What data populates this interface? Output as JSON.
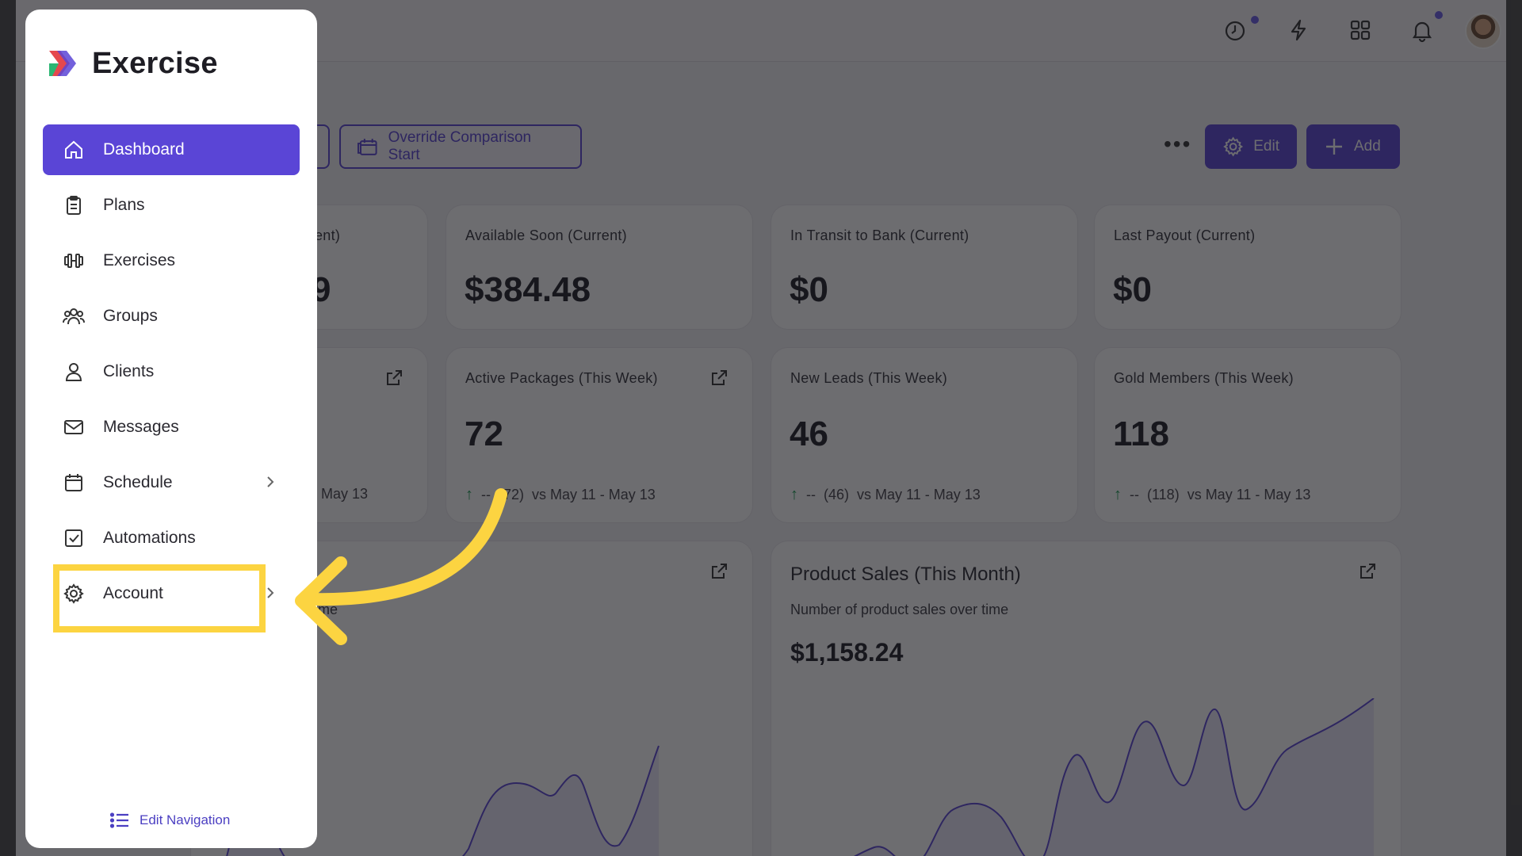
{
  "app": {
    "name": "Exercise"
  },
  "sidebar": {
    "items": [
      {
        "label": "Dashboard"
      },
      {
        "label": "Plans"
      },
      {
        "label": "Exercises"
      },
      {
        "label": "Groups"
      },
      {
        "label": "Clients"
      },
      {
        "label": "Messages"
      },
      {
        "label": "Schedule"
      },
      {
        "label": "Automations"
      },
      {
        "label": "Account"
      }
    ],
    "edit_navigation": "Edit Navigation"
  },
  "toolbar": {
    "override_label": "Override Comparison Start",
    "edit_label": "Edit",
    "add_label": "Add",
    "more_label": "•••"
  },
  "cards": {
    "partial_top_label": "ent)",
    "partial_top_value": "9",
    "partial_mid_cmp": "May 13",
    "partial_chart_sub": "ime",
    "available_soon": {
      "label": "Available Soon (Current)",
      "value": "$384.48"
    },
    "in_transit": {
      "label": "In Transit to Bank (Current)",
      "value": "$0"
    },
    "last_payout": {
      "label": "Last Payout (Current)",
      "value": "$0"
    },
    "active_packages": {
      "label": "Active Packages (This Week)",
      "value": "72",
      "change": "--",
      "prev": "(72)",
      "range": "vs May 11 - May 13"
    },
    "new_leads": {
      "label": "New Leads (This Week)",
      "value": "46",
      "change": "--",
      "prev": "(46)",
      "range": "vs May 11 - May 13"
    },
    "gold_members": {
      "label": "Gold Members (This Week)",
      "value": "118",
      "change": "--",
      "prev": "(118)",
      "range": "vs May 11 - May 13"
    },
    "product_sales": {
      "title": "Product Sales (This Month)",
      "subtitle": "Number of product sales over time",
      "amount": "$1,158.24"
    }
  },
  "colors": {
    "brand": "#5a45d6",
    "highlight": "#fcd441",
    "positive": "#1f9d55"
  }
}
